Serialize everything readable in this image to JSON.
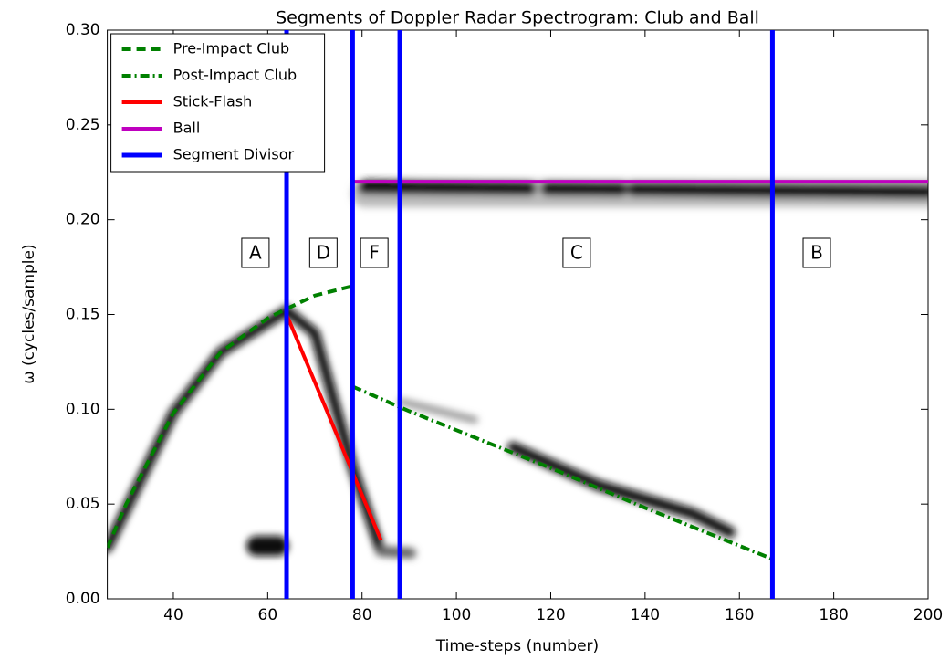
{
  "chart_data": {
    "type": "line",
    "title": "Segments of Doppler Radar Spectrogram: Club and Ball",
    "x_label": "Time-steps (number)",
    "y_label": "ω  (cycles/sample)",
    "xlim": [
      26,
      200
    ],
    "ylim": [
      0,
      0.3
    ],
    "xticks": [
      40,
      60,
      80,
      100,
      120,
      140,
      160,
      180,
      200
    ],
    "yticks": [
      {
        "value": 0,
        "label": "0.00"
      },
      {
        "value": 0.05,
        "label": "0.05"
      },
      {
        "value": 0.1,
        "label": "0.10"
      },
      {
        "value": 0.15,
        "label": "0.15"
      },
      {
        "value": 0.2,
        "label": "0.20"
      },
      {
        "value": 0.25,
        "label": "0.25"
      },
      {
        "value": 0.3,
        "label": "0.30"
      }
    ],
    "legend": "upper left",
    "series": [
      {
        "name": "Pre-Impact Club",
        "color": "#008000",
        "style": "dashed",
        "x": [
          26,
          30,
          40,
          50,
          60,
          64,
          70,
          78
        ],
        "values": [
          0.027,
          0.05,
          0.098,
          0.13,
          0.148,
          0.153,
          0.16,
          0.165
        ]
      },
      {
        "name": "Post-Impact Club",
        "color": "#008000",
        "style": "dashdot",
        "x": [
          78,
          90,
          100,
          120,
          140,
          160,
          167
        ],
        "values": [
          0.112,
          0.099,
          0.089,
          0.069,
          0.048,
          0.028,
          0.021
        ]
      },
      {
        "name": "Stick-Flash",
        "color": "#ff0000",
        "style": "solid",
        "x": [
          64,
          84
        ],
        "values": [
          0.15,
          0.031
        ]
      },
      {
        "name": "Ball",
        "color": "#bf00bf",
        "style": "solid",
        "x": [
          78,
          200
        ],
        "values": [
          0.22,
          0.22
        ]
      }
    ],
    "segment_divisor": {
      "name": "Segment Divisor",
      "color": "#0000ff",
      "x": [
        64,
        78,
        88,
        167
      ]
    },
    "annotations": [
      {
        "text": "A",
        "x": 57.4,
        "y": 0.1825
      },
      {
        "text": "D",
        "x": 71.8,
        "y": 0.1825
      },
      {
        "text": "F",
        "x": 82.6,
        "y": 0.1825
      },
      {
        "text": "C",
        "x": 125.5,
        "y": 0.1825
      },
      {
        "text": "B",
        "x": 176.4,
        "y": 0.1825
      }
    ]
  }
}
